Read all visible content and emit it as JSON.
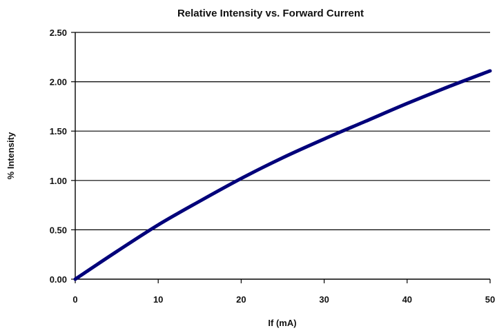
{
  "chart_data": {
    "type": "line",
    "title": "Relative Intensity vs. Forward Current",
    "xlabel": "If (mA)",
    "ylabel": "% Intensity",
    "xlim": [
      0,
      50
    ],
    "ylim": [
      0,
      2.5
    ],
    "x_ticks": [
      "0",
      "10",
      "20",
      "30",
      "40",
      "50"
    ],
    "y_ticks": [
      "0.00",
      "0.50",
      "1.00",
      "1.50",
      "2.00",
      "2.50"
    ],
    "grid": "horizontal",
    "legend": "none",
    "series": [
      {
        "color": "#00007a",
        "x": [
          0,
          5,
          10,
          15,
          20,
          25,
          30,
          35,
          40,
          45,
          50
        ],
        "y": [
          0.0,
          0.28,
          0.55,
          0.79,
          1.02,
          1.23,
          1.42,
          1.6,
          1.78,
          1.95,
          2.11
        ]
      }
    ]
  }
}
